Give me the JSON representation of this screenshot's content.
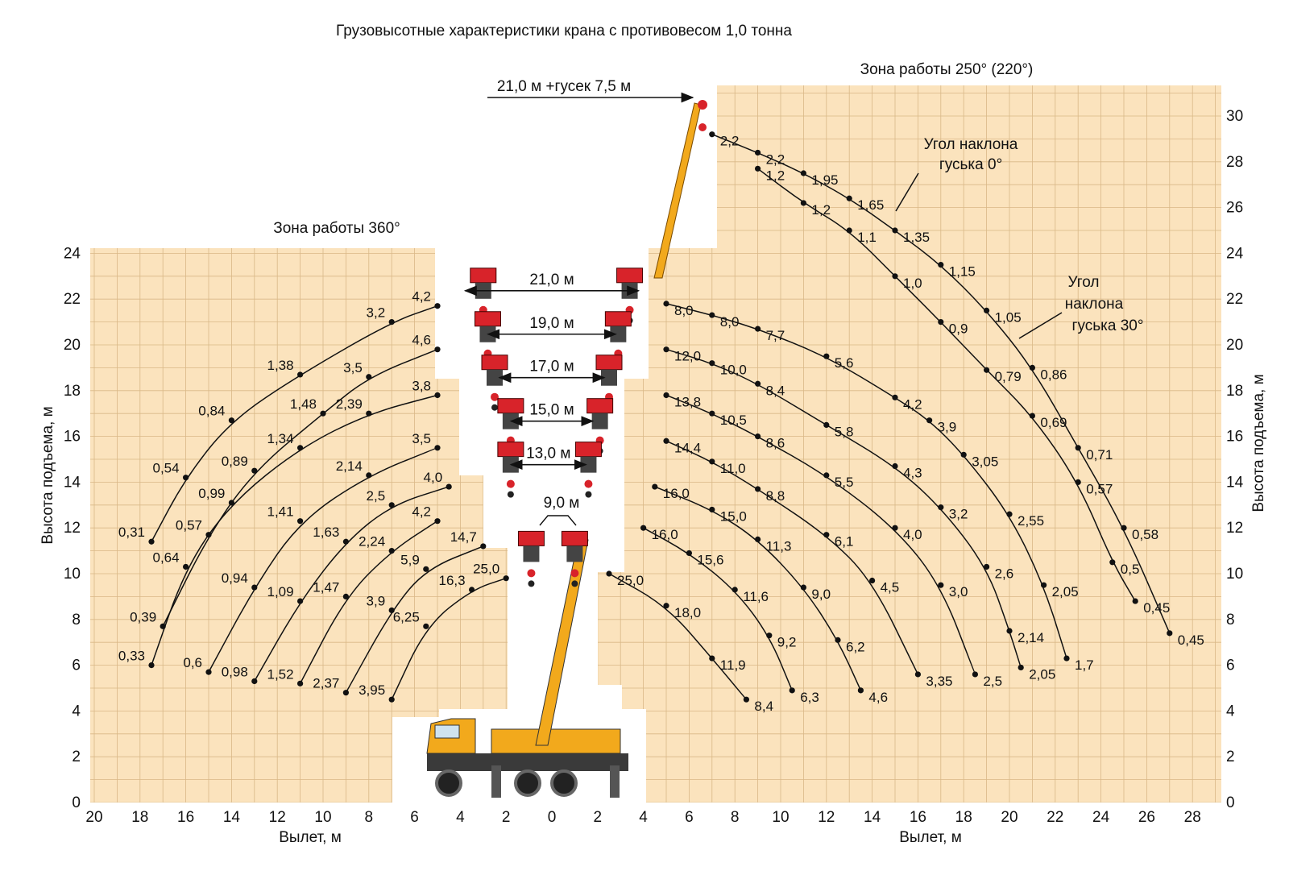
{
  "chart_data": {
    "type": "scatter",
    "title": "Грузовысотные характеристики крана с противовесом 1,0 тонна",
    "xlabel": "Вылет, м",
    "ylabel": "Высота подъема, м",
    "xlim": [
      -20,
      29
    ],
    "ylim": [
      0,
      31
    ],
    "x_ticks": [
      "20",
      "18",
      "16",
      "14",
      "12",
      "10",
      "8",
      "6",
      "4",
      "2",
      "0",
      "2",
      "4",
      "6",
      "8",
      "10",
      "12",
      "14",
      "16",
      "18",
      "20",
      "22",
      "24",
      "26",
      "28"
    ],
    "y_ticks": [
      "0",
      "2",
      "4",
      "6",
      "8",
      "10",
      "12",
      "14",
      "16",
      "18",
      "20",
      "22",
      "24"
    ],
    "y_ticks_right": [
      "0",
      "2",
      "4",
      "6",
      "8",
      "10",
      "12",
      "14",
      "16",
      "18",
      "20",
      "22",
      "24",
      "26",
      "28",
      "30"
    ],
    "grid": true,
    "zones": {
      "left": "Зона работы 360°",
      "right": "Зона работы 250° (220°)"
    },
    "colors": {
      "zone_fill": "#fbe3bd",
      "grid": "#d9b887",
      "curve": "#111111",
      "crane_yellow": "#f2a91c",
      "hook_red": "#d8232a"
    },
    "booms": [
      {
        "label": "21,0 м",
        "y": 23.0,
        "x_from": -4.0,
        "x_to": 4.0
      },
      {
        "label": "19,0 м",
        "y": 21.1,
        "x_from": -3.0,
        "x_to": 3.0
      },
      {
        "label": "17,0 м",
        "y": 19.2,
        "x_from": -2.5,
        "x_to": 2.5
      },
      {
        "label": "15,0 м",
        "y": 17.3,
        "x_from": -2.0,
        "x_to": 2.0
      },
      {
        "label": "13,0 м",
        "y": 15.4,
        "x_from": -2.0,
        "x_to": 1.7
      },
      {
        "label": "9,0 м",
        "y": 12.2,
        "x_from": -0.6,
        "x_to": 0.6
      },
      {
        "label": "21,0 м +гусек 7,5 м",
        "y": 30.3,
        "x_from": -3.0,
        "x_to": 6.0
      }
    ],
    "annotations": {
      "jib0": [
        "Угол наклона",
        "гуська 0°"
      ],
      "jib30": [
        "Угол",
        "наклона",
        "гуська 30°"
      ]
    },
    "series": [
      {
        "boom": "21,0 м",
        "points": [
          {
            "x": -17.5,
            "y": 11.4,
            "label": "0,31"
          },
          {
            "x": -16.0,
            "y": 14.2,
            "label": "0,54"
          },
          {
            "x": -14.0,
            "y": 16.7,
            "label": "0,84"
          },
          {
            "x": -11.0,
            "y": 18.7,
            "label": "1,38"
          },
          {
            "x": -7.0,
            "y": 21.0,
            "label": "3,2"
          },
          {
            "x": -5.0,
            "y": 21.7,
            "label": "4,2"
          },
          {
            "x": 5.0,
            "y": 21.8,
            "label": "8,0"
          },
          {
            "x": 7.0,
            "y": 21.3,
            "label": "8,0"
          },
          {
            "x": 9.0,
            "y": 20.7,
            "label": "7,7"
          },
          {
            "x": 12.0,
            "y": 19.5,
            "label": "5,6"
          },
          {
            "x": 15.0,
            "y": 17.7,
            "label": "4,2"
          },
          {
            "x": 16.5,
            "y": 16.7,
            "label": "3,9"
          },
          {
            "x": 18.0,
            "y": 15.2,
            "label": "3,05"
          },
          {
            "x": 20.0,
            "y": 12.6,
            "label": "2,55"
          },
          {
            "x": 21.5,
            "y": 9.5,
            "label": "2,05"
          },
          {
            "x": 22.5,
            "y": 6.3,
            "label": "1,7"
          }
        ]
      },
      {
        "boom": "19,0 м",
        "points": [
          {
            "x": -17.0,
            "y": 7.7,
            "label": "0,39"
          },
          {
            "x": -15.0,
            "y": 11.7,
            "label": "0,57"
          },
          {
            "x": -13.0,
            "y": 14.5,
            "label": "0,89"
          },
          {
            "x": -10.0,
            "y": 17.0,
            "label": "1,48"
          },
          {
            "x": -8.0,
            "y": 18.6,
            "label": "3,5"
          },
          {
            "x": -5.0,
            "y": 19.8,
            "label": "4,6"
          },
          {
            "x": 5.0,
            "y": 19.8,
            "label": "12,0"
          },
          {
            "x": 7.0,
            "y": 19.2,
            "label": "10,0"
          },
          {
            "x": 9.0,
            "y": 18.3,
            "label": "8,4"
          },
          {
            "x": 12.0,
            "y": 16.5,
            "label": "5,8"
          },
          {
            "x": 15.0,
            "y": 14.7,
            "label": "4,3"
          },
          {
            "x": 17.0,
            "y": 12.9,
            "label": "3,2"
          },
          {
            "x": 19.0,
            "y": 10.3,
            "label": "2,6"
          },
          {
            "x": 20.0,
            "y": 7.5,
            "label": "2,14"
          },
          {
            "x": 20.5,
            "y": 5.9,
            "label": "2,05"
          }
        ]
      },
      {
        "boom": "17,0 м",
        "points": [
          {
            "x": -17.5,
            "y": 6.0,
            "label": "0,33"
          },
          {
            "x": -16.0,
            "y": 10.3,
            "label": "0,64"
          },
          {
            "x": -14.0,
            "y": 13.1,
            "label": "0,99"
          },
          {
            "x": -11.0,
            "y": 15.5,
            "label": "1,34"
          },
          {
            "x": -8.0,
            "y": 17.0,
            "label": "2,39"
          },
          {
            "x": -5.0,
            "y": 17.8,
            "label": "3,8"
          },
          {
            "x": 5.0,
            "y": 17.8,
            "label": "13,8"
          },
          {
            "x": 7.0,
            "y": 17.0,
            "label": "10,5"
          },
          {
            "x": 9.0,
            "y": 16.0,
            "label": "8,6"
          },
          {
            "x": 12.0,
            "y": 14.3,
            "label": "5,5"
          },
          {
            "x": 15.0,
            "y": 12.0,
            "label": "4,0"
          },
          {
            "x": 17.0,
            "y": 9.5,
            "label": "3,0"
          },
          {
            "x": 18.5,
            "y": 5.6,
            "label": "2,5"
          }
        ]
      },
      {
        "boom": "15,0 м",
        "points": [
          {
            "x": -15.0,
            "y": 5.7,
            "label": "0,6"
          },
          {
            "x": -13.0,
            "y": 9.4,
            "label": "0,94"
          },
          {
            "x": -11.0,
            "y": 12.3,
            "label": "1,41"
          },
          {
            "x": -8.0,
            "y": 14.3,
            "label": "2,14"
          },
          {
            "x": -5.0,
            "y": 15.5,
            "label": "3,5"
          },
          {
            "x": 5.0,
            "y": 15.8,
            "label": "14,4"
          },
          {
            "x": 7.0,
            "y": 14.9,
            "label": "11,0"
          },
          {
            "x": 9.0,
            "y": 13.7,
            "label": "8,8"
          },
          {
            "x": 12.0,
            "y": 11.7,
            "label": "6,1"
          },
          {
            "x": 14.0,
            "y": 9.7,
            "label": "4,5"
          },
          {
            "x": 16.0,
            "y": 5.6,
            "label": "3,35"
          }
        ]
      },
      {
        "boom": "13,0 м",
        "points": [
          {
            "x": -13.0,
            "y": 5.3,
            "label": "0,98"
          },
          {
            "x": -11.0,
            "y": 8.8,
            "label": "1,09"
          },
          {
            "x": -9.0,
            "y": 11.4,
            "label": "1,63"
          },
          {
            "x": -7.0,
            "y": 13.0,
            "label": "2,5"
          },
          {
            "x": -4.5,
            "y": 13.8,
            "label": "4,0"
          },
          {
            "x": 4.5,
            "y": 13.8,
            "label": "16,0"
          },
          {
            "x": 7.0,
            "y": 12.8,
            "label": "15,0"
          },
          {
            "x": 9.0,
            "y": 11.5,
            "label": "11,3"
          },
          {
            "x": 11.0,
            "y": 9.4,
            "label": "9,0"
          },
          {
            "x": 12.5,
            "y": 7.1,
            "label": "6,2"
          },
          {
            "x": 13.5,
            "y": 4.9,
            "label": "4,6"
          }
        ]
      },
      {
        "boom": "9,0 м",
        "points": [
          {
            "x": -11.0,
            "y": 5.2,
            "label": "1,52"
          },
          {
            "x": -9.0,
            "y": 9.0,
            "label": "1,47"
          },
          {
            "x": -7.0,
            "y": 11.0,
            "label": "2,24"
          },
          {
            "x": -5.0,
            "y": 12.3,
            "label": "4,2"
          },
          {
            "x": 4.0,
            "y": 12.0,
            "label": "16,0"
          },
          {
            "x": 6.0,
            "y": 10.9,
            "label": "15,6"
          },
          {
            "x": 8.0,
            "y": 9.3,
            "label": "11,6"
          },
          {
            "x": 9.5,
            "y": 7.3,
            "label": "9,2"
          },
          {
            "x": 10.5,
            "y": 4.9,
            "label": "6,3"
          }
        ]
      },
      {
        "boom": "9,0 м (short)",
        "points": [
          {
            "x": -9.0,
            "y": 4.8,
            "label": "2,37"
          },
          {
            "x": -7.0,
            "y": 8.4,
            "label": "3,9"
          },
          {
            "x": -5.5,
            "y": 10.2,
            "label": "5,9"
          },
          {
            "x": -3.0,
            "y": 11.2,
            "label": "14,7"
          },
          {
            "x": 2.5,
            "y": 10.0,
            "label": "25,0"
          },
          {
            "x": 5.0,
            "y": 8.6,
            "label": "18,0"
          },
          {
            "x": 7.0,
            "y": 6.3,
            "label": "11,9"
          },
          {
            "x": 8.5,
            "y": 4.5,
            "label": "8,4"
          }
        ]
      },
      {
        "boom": "7,5 м",
        "points": [
          {
            "x": -7.0,
            "y": 4.5,
            "label": "3,95"
          },
          {
            "x": -5.5,
            "y": 7.7,
            "label": "6,25"
          },
          {
            "x": -3.5,
            "y": 9.3,
            "label": "16,3"
          },
          {
            "x": -2.0,
            "y": 9.8,
            "label": "25,0"
          }
        ]
      },
      {
        "boom": "jib 0°",
        "points": [
          {
            "x": 7.0,
            "y": 29.2,
            "label": "2,2"
          },
          {
            "x": 9.0,
            "y": 28.4,
            "label": "2,2"
          },
          {
            "x": 11.0,
            "y": 27.5,
            "label": "1,95"
          },
          {
            "x": 13.0,
            "y": 26.4,
            "label": "1,65"
          },
          {
            "x": 15.0,
            "y": 25.0,
            "label": "1,35"
          },
          {
            "x": 17.0,
            "y": 23.5,
            "label": "1,15"
          },
          {
            "x": 19.0,
            "y": 21.5,
            "label": "1,05"
          },
          {
            "x": 21.0,
            "y": 19.0,
            "label": "0,86"
          },
          {
            "x": 23.0,
            "y": 15.5,
            "label": "0,71"
          },
          {
            "x": 25.0,
            "y": 12.0,
            "label": "0,58"
          },
          {
            "x": 27.0,
            "y": 7.4,
            "label": "0,45"
          }
        ]
      },
      {
        "boom": "jib 30°",
        "points": [
          {
            "x": 9.0,
            "y": 27.7,
            "label": "1,2"
          },
          {
            "x": 11.0,
            "y": 26.2,
            "label": "1,2"
          },
          {
            "x": 13.0,
            "y": 25.0,
            "label": "1,1"
          },
          {
            "x": 15.0,
            "y": 23.0,
            "label": "1,0"
          },
          {
            "x": 17.0,
            "y": 21.0,
            "label": "0,9"
          },
          {
            "x": 19.0,
            "y": 18.9,
            "label": "0,79"
          },
          {
            "x": 21.0,
            "y": 16.9,
            "label": "0,69"
          },
          {
            "x": 23.0,
            "y": 14.0,
            "label": "0,57"
          },
          {
            "x": 24.5,
            "y": 10.5,
            "label": "0,5"
          },
          {
            "x": 25.5,
            "y": 8.8,
            "label": "0,45"
          }
        ]
      }
    ]
  }
}
